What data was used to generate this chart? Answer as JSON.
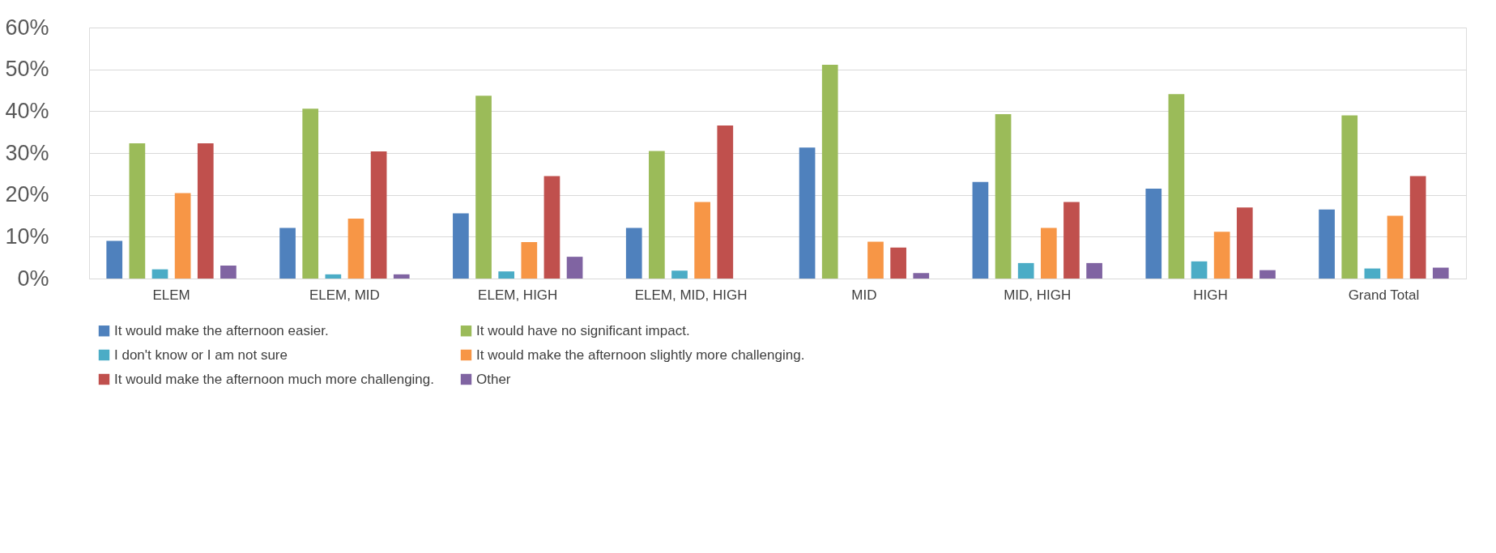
{
  "chart_data": {
    "type": "bar",
    "categories": [
      "ELEM",
      "ELEM, MID",
      "ELEM, HIGH",
      "ELEM, MID, HIGH",
      "MID",
      "MID, HIGH",
      "HIGH",
      "Grand Total"
    ],
    "series": [
      {
        "name": "It would make the afternoon easier.",
        "color": "#4f81bd",
        "values": [
          9.0,
          12.1,
          15.6,
          12.1,
          31.3,
          23.1,
          21.5,
          16.5
        ]
      },
      {
        "name": "It would have no significant impact.",
        "color": "#9bbb59",
        "values": [
          32.3,
          40.6,
          43.7,
          30.5,
          51.1,
          39.3,
          44.1,
          39.0
        ]
      },
      {
        "name": "I don't know or I am not sure",
        "color": "#4bacc6",
        "values": [
          2.2,
          1.0,
          1.7,
          1.9,
          0,
          3.7,
          4.1,
          2.4
        ]
      },
      {
        "name": "It would make the afternoon slightly more challenging.",
        "color": "#f79646",
        "values": [
          20.4,
          14.3,
          8.7,
          18.3,
          8.8,
          12.1,
          11.2,
          15.0
        ]
      },
      {
        "name": "It would make the afternoon much more challenging.",
        "color": "#c0504d",
        "values": [
          32.3,
          30.4,
          24.5,
          36.6,
          7.4,
          18.3,
          17.0,
          24.5
        ]
      },
      {
        "name": "Other",
        "color": "#8064a2",
        "values": [
          3.1,
          1.0,
          5.2,
          0,
          1.3,
          3.7,
          2.0,
          2.6
        ]
      }
    ],
    "ylim": [
      0,
      60
    ],
    "yticks": [
      {
        "value": 0,
        "label": "0%"
      },
      {
        "value": 10,
        "label": "10%"
      },
      {
        "value": 20,
        "label": "20%"
      },
      {
        "value": 30,
        "label": "30%"
      },
      {
        "value": 40,
        "label": "40%"
      },
      {
        "value": 50,
        "label": "50%"
      },
      {
        "value": 60,
        "label": "60%"
      }
    ],
    "grid": "y",
    "legend": "bottom"
  }
}
